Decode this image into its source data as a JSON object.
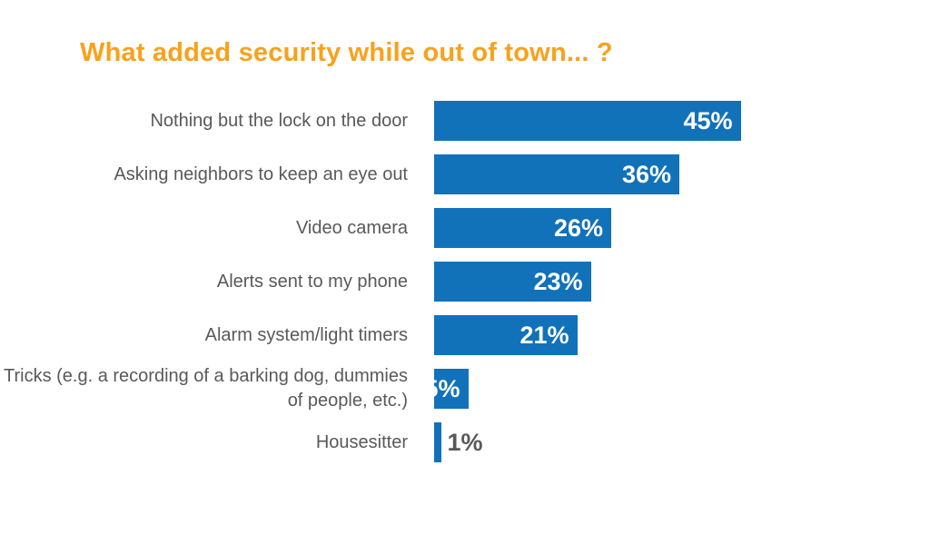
{
  "chart_data": {
    "type": "bar",
    "orientation": "horizontal",
    "title": "What added security while out of town... ?",
    "categories": [
      "Nothing but the lock on the door",
      "Asking neighbors to keep an eye out",
      "Video camera",
      "Alerts sent to my phone",
      "Alarm system/light timers",
      "Tricks (e.g. a recording of a barking dog, dummies of people, etc.)",
      "Housesitter"
    ],
    "values": [
      45,
      36,
      26,
      23,
      21,
      5,
      1
    ],
    "value_labels": [
      "45%",
      "36%",
      "26%",
      "23%",
      "21%",
      "5%",
      "1%"
    ],
    "xlim": [
      0,
      50
    ],
    "grid": false,
    "legend": "none",
    "colors": {
      "bar": "#1172BA",
      "title": "#F9A11C",
      "category_text": "#595959",
      "value_inside": "#FFFFFF",
      "value_outside": "#595959"
    }
  }
}
